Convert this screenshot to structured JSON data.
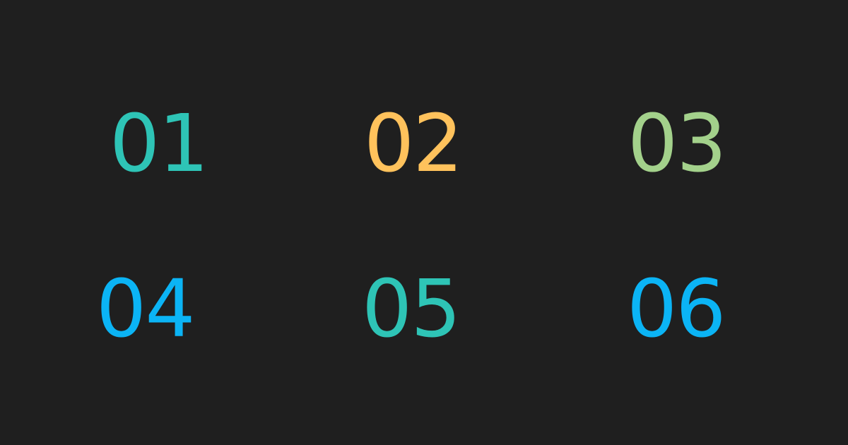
{
  "items": [
    {
      "label": "01",
      "color": "#2ec4b6"
    },
    {
      "label": "02",
      "color": "#ffc25c"
    },
    {
      "label": "03",
      "color": "#a3d18b"
    },
    {
      "label": "04",
      "color": "#0bb4f5"
    },
    {
      "label": "05",
      "color": "#2ec4b6"
    },
    {
      "label": "06",
      "color": "#0bb4f5"
    }
  ],
  "background": "#1f1f1f"
}
